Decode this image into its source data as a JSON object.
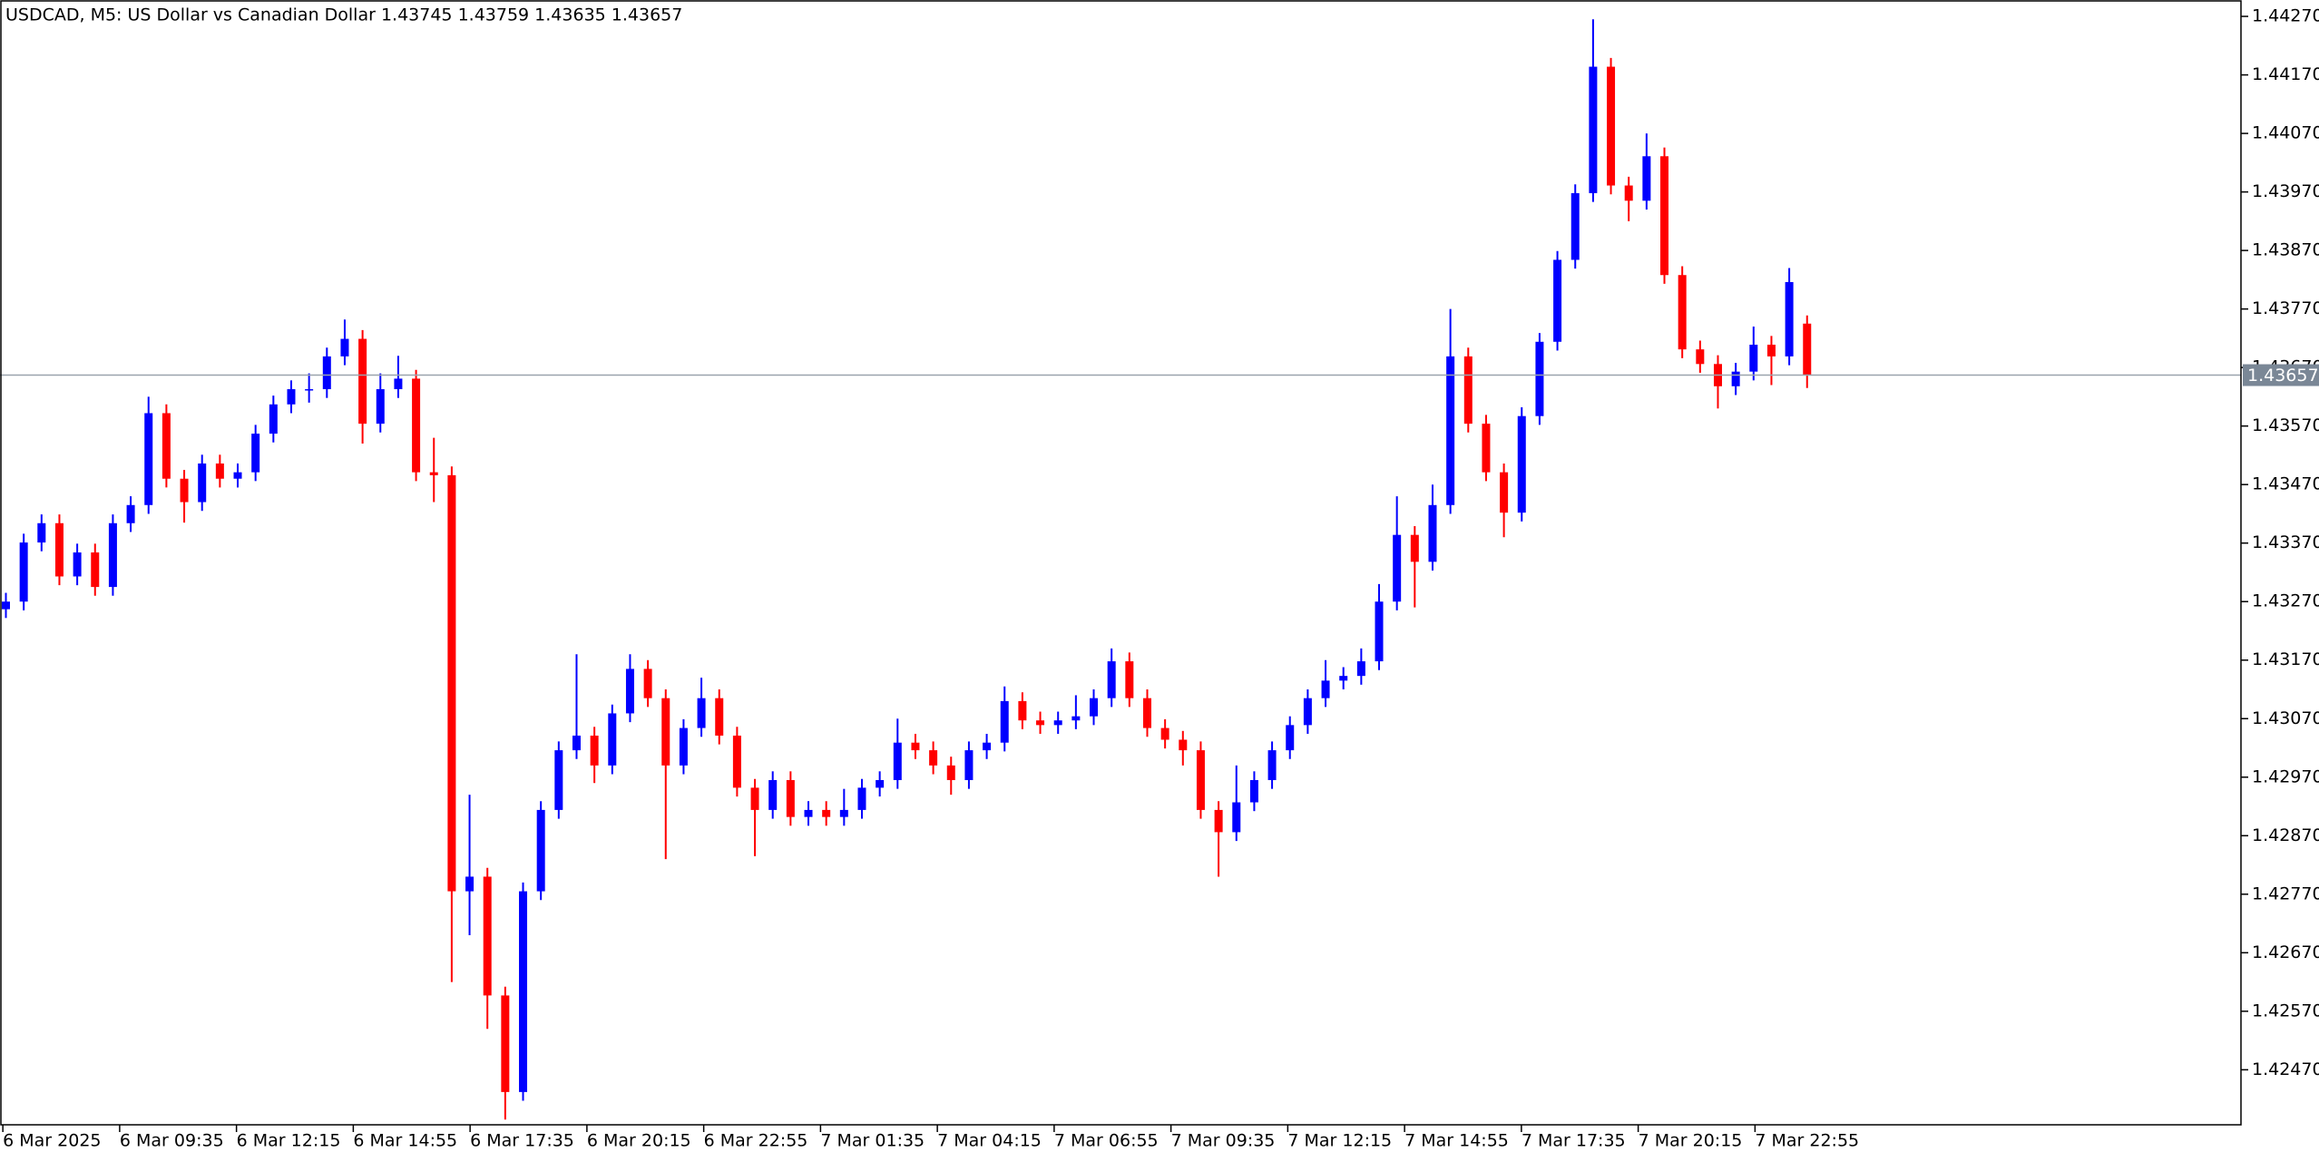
{
  "chart_data": {
    "type": "candlestick",
    "title": "USDCAD, M5:  US Dollar vs Canadian Dollar  1.43745 1.43759 1.43635 1.43657",
    "up_color": "#0000ff",
    "down_color": "#ff0000",
    "price_line_color": "#9aa3ad",
    "open": [
      1.43257,
      1.4327,
      1.43371,
      1.43404,
      1.43313,
      1.43354,
      1.43295,
      1.43404,
      1.43435,
      1.43592,
      1.4348,
      1.4344,
      1.43506,
      1.4348,
      1.43491,
      1.43557,
      1.43607,
      1.43633,
      1.43633,
      1.43689,
      1.43719,
      1.43574,
      1.43633,
      1.43651,
      1.43491,
      1.43486,
      1.42775,
      1.428,
      1.42597,
      1.42432,
      1.42775,
      1.42914,
      1.43016,
      1.43041,
      1.4299,
      1.43079,
      1.43155,
      1.43105,
      1.4299,
      1.43054,
      1.43105,
      1.43041,
      1.42952,
      1.42914,
      1.42965,
      1.42902,
      1.42914,
      1.42902,
      1.42914,
      1.42952,
      1.42965,
      1.43029,
      1.43016,
      1.4299,
      1.42965,
      1.43016,
      1.43029,
      1.431,
      1.43067,
      1.43059,
      1.43067,
      1.43074,
      1.43105,
      1.43168,
      1.43105,
      1.43054,
      1.43034,
      1.43016,
      1.42914,
      1.42876,
      1.42927,
      1.42965,
      1.43016,
      1.43059,
      1.43105,
      1.43135,
      1.43143,
      1.43168,
      1.4327,
      1.43384,
      1.43338,
      1.43435,
      1.43689,
      1.43574,
      1.43491,
      1.43422,
      1.43587,
      1.43714,
      1.43854,
      1.43968,
      1.44184,
      1.43981,
      1.43955,
      1.44031,
      1.43828,
      1.43701,
      1.43676,
      1.43638,
      1.43663,
      1.43709,
      1.43689,
      1.43745
    ],
    "high": [
      1.43285,
      1.43386,
      1.43419,
      1.43419,
      1.43369,
      1.43369,
      1.43419,
      1.4345,
      1.4362,
      1.43607,
      1.43495,
      1.43521,
      1.43521,
      1.43506,
      1.43572,
      1.43622,
      1.43648,
      1.4366,
      1.43704,
      1.43752,
      1.43734,
      1.4366,
      1.4369,
      1.43666,
      1.4355,
      1.43501,
      1.4294,
      1.42815,
      1.42612,
      1.4279,
      1.42929,
      1.43031,
      1.4318,
      1.43056,
      1.43094,
      1.4318,
      1.4317,
      1.4312,
      1.43069,
      1.4314,
      1.4312,
      1.43056,
      1.42967,
      1.4298,
      1.4298,
      1.42929,
      1.42929,
      1.4295,
      1.42967,
      1.4298,
      1.4307,
      1.43044,
      1.43031,
      1.43005,
      1.43031,
      1.43044,
      1.43125,
      1.43115,
      1.43082,
      1.43082,
      1.4311,
      1.4312,
      1.4319,
      1.43183,
      1.4312,
      1.43069,
      1.43049,
      1.43031,
      1.42929,
      1.4299,
      1.4298,
      1.43031,
      1.43074,
      1.4312,
      1.4317,
      1.43158,
      1.4319,
      1.433,
      1.4345,
      1.43399,
      1.4347,
      1.4377,
      1.43704,
      1.43589,
      1.43506,
      1.43602,
      1.43729,
      1.43869,
      1.43983,
      1.44265,
      1.44199,
      1.43996,
      1.4407,
      1.44046,
      1.43843,
      1.43716,
      1.43691,
      1.43678,
      1.4374,
      1.43724,
      1.4384,
      1.43759
    ],
    "low": [
      1.43242,
      1.43255,
      1.43356,
      1.43298,
      1.43298,
      1.4328,
      1.4328,
      1.43389,
      1.4342,
      1.43465,
      1.43405,
      1.43425,
      1.43465,
      1.43465,
      1.43476,
      1.43542,
      1.43592,
      1.4361,
      1.43618,
      1.43674,
      1.4354,
      1.43559,
      1.43618,
      1.43476,
      1.4344,
      1.4262,
      1.427,
      1.4254,
      1.42385,
      1.42417,
      1.4276,
      1.42899,
      1.43001,
      1.4296,
      1.42975,
      1.43064,
      1.4309,
      1.4283,
      1.42975,
      1.43039,
      1.43026,
      1.42937,
      1.42835,
      1.42899,
      1.42887,
      1.42887,
      1.42887,
      1.42887,
      1.42899,
      1.42937,
      1.4295,
      1.43001,
      1.42975,
      1.4294,
      1.4295,
      1.43001,
      1.43014,
      1.43052,
      1.43044,
      1.43044,
      1.43052,
      1.43059,
      1.4309,
      1.4309,
      1.43039,
      1.43019,
      1.4299,
      1.42899,
      1.428,
      1.42861,
      1.42912,
      1.4295,
      1.43001,
      1.43044,
      1.4309,
      1.4312,
      1.43128,
      1.43153,
      1.43255,
      1.4326,
      1.43323,
      1.4342,
      1.43559,
      1.43476,
      1.4338,
      1.43407,
      1.43572,
      1.43699,
      1.43839,
      1.43953,
      1.43966,
      1.4392,
      1.4394,
      1.43813,
      1.43686,
      1.43661,
      1.436,
      1.43623,
      1.43648,
      1.4364,
      1.43674,
      1.43635
    ],
    "close": [
      1.4327,
      1.43371,
      1.43404,
      1.43313,
      1.43354,
      1.43295,
      1.43404,
      1.43435,
      1.43592,
      1.4348,
      1.4344,
      1.43506,
      1.4348,
      1.43491,
      1.43557,
      1.43607,
      1.43633,
      1.43633,
      1.43689,
      1.43719,
      1.43574,
      1.43633,
      1.43651,
      1.43491,
      1.43486,
      1.42775,
      1.428,
      1.42597,
      1.42432,
      1.42775,
      1.42914,
      1.43016,
      1.43041,
      1.4299,
      1.43079,
      1.43155,
      1.43105,
      1.4299,
      1.43054,
      1.43105,
      1.43041,
      1.42952,
      1.42914,
      1.42965,
      1.42902,
      1.42914,
      1.42902,
      1.42914,
      1.42952,
      1.42965,
      1.43029,
      1.43016,
      1.4299,
      1.42965,
      1.43016,
      1.43029,
      1.431,
      1.43067,
      1.43059,
      1.43067,
      1.43074,
      1.43105,
      1.43168,
      1.43105,
      1.43054,
      1.43034,
      1.43016,
      1.42914,
      1.42876,
      1.42927,
      1.42965,
      1.43016,
      1.43059,
      1.43105,
      1.43135,
      1.43143,
      1.43168,
      1.4327,
      1.43384,
      1.43338,
      1.43435,
      1.43689,
      1.43574,
      1.43491,
      1.43422,
      1.43587,
      1.43714,
      1.43854,
      1.43968,
      1.44184,
      1.43981,
      1.43955,
      1.44031,
      1.43828,
      1.43701,
      1.43676,
      1.43638,
      1.43663,
      1.43709,
      1.43689,
      1.43816,
      1.43657
    ],
    "xlim": [
      -0.33,
      125.33
    ],
    "xticks": [
      {
        "value": -0.17,
        "label": "6 Mar 2025"
      },
      {
        "value": 6.38,
        "label": "6 Mar 09:35"
      },
      {
        "value": 12.93,
        "label": "6 Mar 12:15"
      },
      {
        "value": 19.48,
        "label": "6 Mar 14:55"
      },
      {
        "value": 26.03,
        "label": "6 Mar 17:35"
      },
      {
        "value": 32.58,
        "label": "6 Mar 20:15"
      },
      {
        "value": 39.13,
        "label": "6 Mar 22:55"
      },
      {
        "value": 45.68,
        "label": "7 Mar 01:35"
      },
      {
        "value": 52.23,
        "label": "7 Mar 04:15"
      },
      {
        "value": 58.78,
        "label": "7 Mar 06:55"
      },
      {
        "value": 65.33,
        "label": "7 Mar 09:35"
      },
      {
        "value": 71.88,
        "label": "7 Mar 12:15"
      },
      {
        "value": 78.43,
        "label": "7 Mar 14:55"
      },
      {
        "value": 84.98,
        "label": "7 Mar 17:35"
      },
      {
        "value": 91.53,
        "label": "7 Mar 20:15"
      },
      {
        "value": 98.08,
        "label": "7 Mar 22:55"
      }
    ],
    "ylim": [
      1.42376,
      1.44298
    ],
    "yticks": [
      {
        "value": 1.4247,
        "label": "1.42470"
      },
      {
        "value": 1.4257,
        "label": "1.42570"
      },
      {
        "value": 1.4267,
        "label": "1.42670"
      },
      {
        "value": 1.4277,
        "label": "1.42770"
      },
      {
        "value": 1.4287,
        "label": "1.42870"
      },
      {
        "value": 1.4297,
        "label": "1.42970"
      },
      {
        "value": 1.4307,
        "label": "1.43070"
      },
      {
        "value": 1.4317,
        "label": "1.43170"
      },
      {
        "value": 1.4327,
        "label": "1.43270"
      },
      {
        "value": 1.4337,
        "label": "1.43370"
      },
      {
        "value": 1.4347,
        "label": "1.43470"
      },
      {
        "value": 1.4357,
        "label": "1.43570"
      },
      {
        "value": 1.4367,
        "label": "1.43670"
      },
      {
        "value": 1.4377,
        "label": "1.43770"
      },
      {
        "value": 1.4387,
        "label": "1.43870"
      },
      {
        "value": 1.4397,
        "label": "1.43970"
      },
      {
        "value": 1.4407,
        "label": "1.44070"
      },
      {
        "value": 1.4417,
        "label": "1.44170"
      },
      {
        "value": 1.4427,
        "label": "1.44270"
      }
    ],
    "grid": false
  }
}
